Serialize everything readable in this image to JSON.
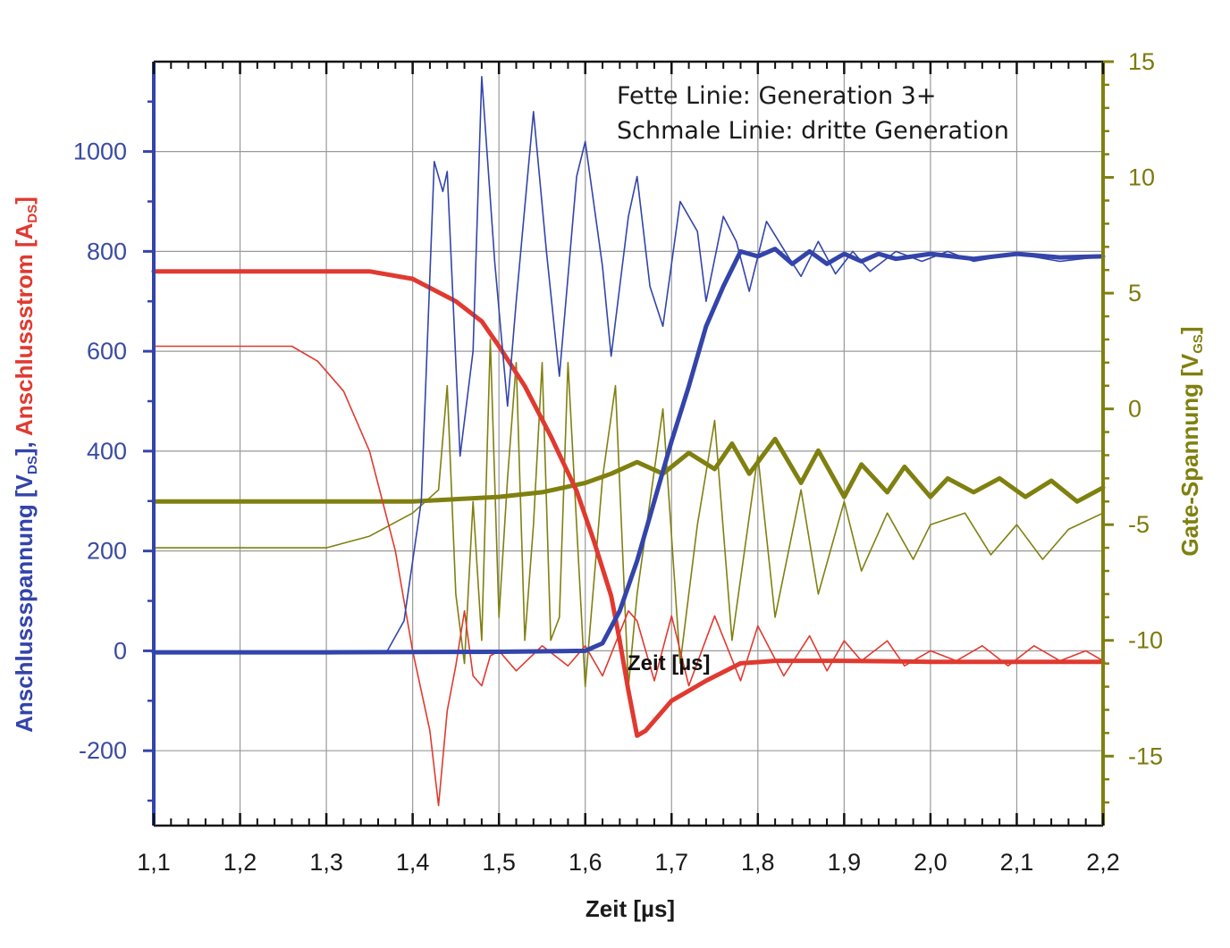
{
  "chart_data": {
    "type": "line",
    "xlabel": "Zeit [µs]",
    "inner_xlabel": "Zeit [µs]",
    "ylabel_left": {
      "part1": "Anschlussspannung [V",
      "part1_sub": "DS",
      "part1_end": "],",
      "part2": "Anschlussstrom [A",
      "part2_sub": "DS",
      "part2_end": "]"
    },
    "ylabel_right": {
      "main": "Gate-Spannung [V",
      "sub": "GS",
      "end": "]"
    },
    "xlim": [
      1.1,
      2.2
    ],
    "ylim_left": [
      -350,
      1180
    ],
    "ylim_right": [
      -18,
      15
    ],
    "x_ticks": [
      "1,1",
      "1,2",
      "1,3",
      "1,4",
      "1,5",
      "1,6",
      "1,7",
      "1,8",
      "1,9",
      "2,0",
      "2,1",
      "2,2"
    ],
    "y_left_ticks": [
      "-200",
      "0",
      "200",
      "400",
      "600",
      "800",
      "1000"
    ],
    "y_right_ticks": [
      "-15",
      "-10",
      "-5",
      "0",
      "5",
      "10",
      "15"
    ],
    "grid": true,
    "annotations": [
      "Fette Linie: Generation 3+",
      "Schmale Linie: dritte Generation"
    ],
    "colors": {
      "voltage": "#3344aa",
      "current": "#e03a30",
      "gate": "#808010",
      "left_axis": "#3a4ba3",
      "right_axis": "#7d7a0c",
      "grid": "#9a9a9a"
    },
    "series": [
      {
        "axis": "left",
        "color": "voltage",
        "width": "bold",
        "points": [
          [
            1.1,
            -3
          ],
          [
            1.3,
            -3
          ],
          [
            1.5,
            -2
          ],
          [
            1.6,
            0
          ],
          [
            1.62,
            15
          ],
          [
            1.64,
            80
          ],
          [
            1.66,
            180
          ],
          [
            1.68,
            300
          ],
          [
            1.7,
            420
          ],
          [
            1.72,
            530
          ],
          [
            1.74,
            650
          ],
          [
            1.76,
            730
          ],
          [
            1.78,
            800
          ],
          [
            1.8,
            790
          ],
          [
            1.82,
            805
          ],
          [
            1.84,
            775
          ],
          [
            1.86,
            800
          ],
          [
            1.88,
            775
          ],
          [
            1.9,
            795
          ],
          [
            1.92,
            780
          ],
          [
            1.94,
            795
          ],
          [
            1.96,
            785
          ],
          [
            2.0,
            795
          ],
          [
            2.05,
            785
          ],
          [
            2.1,
            795
          ],
          [
            2.15,
            788
          ],
          [
            2.2,
            790
          ]
        ]
      },
      {
        "axis": "left",
        "color": "voltage",
        "width": "thin",
        "points": [
          [
            1.1,
            -3
          ],
          [
            1.3,
            -3
          ],
          [
            1.37,
            -2
          ],
          [
            1.39,
            60
          ],
          [
            1.41,
            300
          ],
          [
            1.425,
            980
          ],
          [
            1.435,
            920
          ],
          [
            1.44,
            960
          ],
          [
            1.455,
            390
          ],
          [
            1.47,
            600
          ],
          [
            1.48,
            1150
          ],
          [
            1.495,
            780
          ],
          [
            1.51,
            490
          ],
          [
            1.52,
            700
          ],
          [
            1.54,
            1080
          ],
          [
            1.555,
            800
          ],
          [
            1.57,
            550
          ],
          [
            1.59,
            950
          ],
          [
            1.6,
            1020
          ],
          [
            1.62,
            770
          ],
          [
            1.63,
            590
          ],
          [
            1.65,
            870
          ],
          [
            1.66,
            950
          ],
          [
            1.675,
            730
          ],
          [
            1.69,
            650
          ],
          [
            1.71,
            900
          ],
          [
            1.73,
            840
          ],
          [
            1.74,
            700
          ],
          [
            1.76,
            870
          ],
          [
            1.775,
            820
          ],
          [
            1.79,
            720
          ],
          [
            1.81,
            860
          ],
          [
            1.835,
            790
          ],
          [
            1.85,
            750
          ],
          [
            1.87,
            820
          ],
          [
            1.89,
            755
          ],
          [
            1.91,
            800
          ],
          [
            1.93,
            760
          ],
          [
            1.96,
            800
          ],
          [
            1.99,
            780
          ],
          [
            2.02,
            800
          ],
          [
            2.05,
            780
          ],
          [
            2.1,
            795
          ],
          [
            2.15,
            780
          ],
          [
            2.2,
            790
          ]
        ]
      },
      {
        "axis": "left",
        "color": "current",
        "width": "bold",
        "points": [
          [
            1.1,
            760
          ],
          [
            1.35,
            760
          ],
          [
            1.4,
            745
          ],
          [
            1.45,
            700
          ],
          [
            1.48,
            660
          ],
          [
            1.5,
            610
          ],
          [
            1.53,
            530
          ],
          [
            1.56,
            430
          ],
          [
            1.59,
            320
          ],
          [
            1.61,
            220
          ],
          [
            1.63,
            110
          ],
          [
            1.64,
            20
          ],
          [
            1.65,
            -80
          ],
          [
            1.66,
            -170
          ],
          [
            1.67,
            -160
          ],
          [
            1.7,
            -100
          ],
          [
            1.74,
            -60
          ],
          [
            1.78,
            -25
          ],
          [
            1.82,
            -20
          ],
          [
            1.86,
            -20
          ],
          [
            1.9,
            -20
          ],
          [
            2.0,
            -22
          ],
          [
            2.1,
            -22
          ],
          [
            2.2,
            -22
          ]
        ]
      },
      {
        "axis": "left",
        "color": "current",
        "width": "thin",
        "points": [
          [
            1.1,
            610
          ],
          [
            1.26,
            610
          ],
          [
            1.29,
            580
          ],
          [
            1.32,
            520
          ],
          [
            1.35,
            400
          ],
          [
            1.38,
            200
          ],
          [
            1.4,
            0
          ],
          [
            1.42,
            -160
          ],
          [
            1.43,
            -310
          ],
          [
            1.44,
            -120
          ],
          [
            1.45,
            -30
          ],
          [
            1.46,
            80
          ],
          [
            1.47,
            -50
          ],
          [
            1.48,
            -70
          ],
          [
            1.49,
            -10
          ],
          [
            1.5,
            0
          ],
          [
            1.52,
            -40
          ],
          [
            1.55,
            10
          ],
          [
            1.58,
            -30
          ],
          [
            1.6,
            10
          ],
          [
            1.62,
            -50
          ],
          [
            1.65,
            80
          ],
          [
            1.66,
            60
          ],
          [
            1.68,
            -60
          ],
          [
            1.7,
            70
          ],
          [
            1.72,
            -70
          ],
          [
            1.75,
            70
          ],
          [
            1.78,
            -60
          ],
          [
            1.8,
            50
          ],
          [
            1.83,
            -50
          ],
          [
            1.86,
            30
          ],
          [
            1.88,
            -40
          ],
          [
            1.9,
            20
          ],
          [
            1.92,
            -20
          ],
          [
            1.95,
            20
          ],
          [
            1.97,
            -30
          ],
          [
            2.0,
            0
          ],
          [
            2.03,
            -20
          ],
          [
            2.06,
            10
          ],
          [
            2.09,
            -30
          ],
          [
            2.12,
            10
          ],
          [
            2.15,
            -20
          ],
          [
            2.18,
            0
          ],
          [
            2.2,
            -20
          ]
        ]
      },
      {
        "axis": "right",
        "color": "gate",
        "width": "bold",
        "points": [
          [
            1.1,
            -4
          ],
          [
            1.3,
            -4
          ],
          [
            1.4,
            -4
          ],
          [
            1.5,
            -3.8
          ],
          [
            1.55,
            -3.6
          ],
          [
            1.6,
            -3.2
          ],
          [
            1.63,
            -2.8
          ],
          [
            1.66,
            -2.3
          ],
          [
            1.69,
            -2.8
          ],
          [
            1.72,
            -1.9
          ],
          [
            1.75,
            -2.6
          ],
          [
            1.77,
            -1.5
          ],
          [
            1.79,
            -2.8
          ],
          [
            1.82,
            -1.3
          ],
          [
            1.85,
            -3.2
          ],
          [
            1.87,
            -1.8
          ],
          [
            1.9,
            -3.8
          ],
          [
            1.92,
            -2.4
          ],
          [
            1.95,
            -3.6
          ],
          [
            1.97,
            -2.5
          ],
          [
            2.0,
            -3.8
          ],
          [
            2.02,
            -3.0
          ],
          [
            2.05,
            -3.6
          ],
          [
            2.08,
            -3.0
          ],
          [
            2.11,
            -3.8
          ],
          [
            2.14,
            -3.1
          ],
          [
            2.17,
            -4
          ],
          [
            2.2,
            -3.4
          ]
        ]
      },
      {
        "axis": "right",
        "color": "gate",
        "width": "thin",
        "points": [
          [
            1.1,
            -6
          ],
          [
            1.3,
            -6
          ],
          [
            1.35,
            -5.5
          ],
          [
            1.4,
            -4.5
          ],
          [
            1.43,
            -3.5
          ],
          [
            1.44,
            1
          ],
          [
            1.45,
            -8
          ],
          [
            1.46,
            -11
          ],
          [
            1.47,
            -4
          ],
          [
            1.48,
            -10
          ],
          [
            1.49,
            3
          ],
          [
            1.5,
            -9
          ],
          [
            1.51,
            -3
          ],
          [
            1.52,
            2
          ],
          [
            1.53,
            -10
          ],
          [
            1.54,
            -5
          ],
          [
            1.55,
            2
          ],
          [
            1.56,
            -10
          ],
          [
            1.57,
            -9
          ],
          [
            1.58,
            2
          ],
          [
            1.6,
            -12
          ],
          [
            1.62,
            -3
          ],
          [
            1.635,
            1
          ],
          [
            1.65,
            -12
          ],
          [
            1.66,
            -8
          ],
          [
            1.69,
            0
          ],
          [
            1.71,
            -11
          ],
          [
            1.73,
            -5
          ],
          [
            1.75,
            -0.5
          ],
          [
            1.77,
            -10
          ],
          [
            1.8,
            -2
          ],
          [
            1.82,
            -9
          ],
          [
            1.85,
            -3.5
          ],
          [
            1.87,
            -8
          ],
          [
            1.9,
            -4
          ],
          [
            1.92,
            -7
          ],
          [
            1.95,
            -4.5
          ],
          [
            1.98,
            -6.5
          ],
          [
            2.0,
            -5
          ],
          [
            2.04,
            -4.5
          ],
          [
            2.07,
            -6.3
          ],
          [
            2.1,
            -5
          ],
          [
            2.13,
            -6.5
          ],
          [
            2.16,
            -5.2
          ],
          [
            2.2,
            -4.5
          ]
        ]
      }
    ]
  }
}
